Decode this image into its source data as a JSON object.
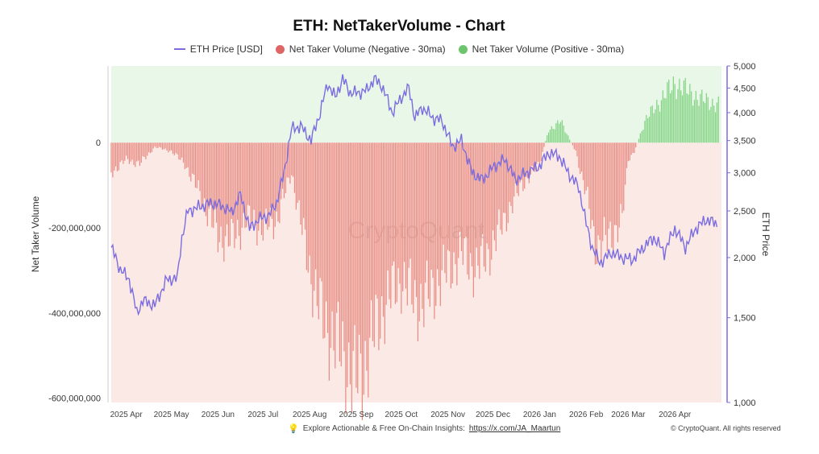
{
  "chart_data": {
    "type": "bar+line",
    "title": "ETH: NetTakerVolume - Chart",
    "legend": [
      {
        "label": "ETH Price [USD]",
        "color": "#7b6ce0",
        "kind": "line"
      },
      {
        "label": "Net Taker Volume (Negative - 30ma)",
        "color": "#e06666",
        "kind": "dot"
      },
      {
        "label": "Net Taker Volume (Positive - 30ma)",
        "color": "#6cc46c",
        "kind": "dot"
      }
    ],
    "ylabel_left": "Net Taker Volume",
    "ylabel_right": "ETH Price",
    "y_left_ticks": [
      0,
      -200000000,
      -400000000,
      -600000000
    ],
    "y_left_tick_labels": [
      "0",
      "-200,000,000",
      "-400,000,000",
      "-600,000,000"
    ],
    "y_left_range": [
      -610000000,
      180000000
    ],
    "y_right_ticks": [
      5000,
      4500,
      4000,
      3500,
      3000,
      2500,
      2000,
      1500,
      1000
    ],
    "y_right_tick_labels": [
      "5,000",
      "4,500",
      "4,000",
      "3,500",
      "3,000",
      "2,500",
      "2,000",
      "1,500",
      "1,000"
    ],
    "y_right_range": [
      1000,
      5000
    ],
    "y_right_scale": "log",
    "x_tick_labels": [
      "2025 Apr",
      "2025 May",
      "2025 Jun",
      "2025 Jul",
      "2025 Aug",
      "2025 Sep",
      "2025 Oct",
      "2025 Nov",
      "2025 Dec",
      "2026 Jan",
      "2026 Feb",
      "2026 Mar",
      "2026 Apr"
    ],
    "x_range": [
      "2025-03-22",
      "2026-05-02"
    ],
    "net_taker_volume_30ma": {
      "dates": [
        "2025-03-22",
        "2025-04-01",
        "2025-04-10",
        "2025-04-20",
        "2025-05-01",
        "2025-05-10",
        "2025-05-20",
        "2025-06-01",
        "2025-06-10",
        "2025-06-20",
        "2025-07-01",
        "2025-07-10",
        "2025-07-20",
        "2025-08-01",
        "2025-08-10",
        "2025-08-20",
        "2025-09-01",
        "2025-09-05",
        "2025-09-10",
        "2025-09-20",
        "2025-10-01",
        "2025-10-10",
        "2025-10-15",
        "2025-10-25",
        "2025-11-01",
        "2025-11-10",
        "2025-11-20",
        "2025-12-01",
        "2025-12-10",
        "2025-12-20",
        "2026-01-01",
        "2026-01-07",
        "2026-01-15",
        "2026-01-25",
        "2026-02-01",
        "2026-02-07",
        "2026-02-15",
        "2026-02-25",
        "2026-03-01",
        "2026-03-05",
        "2026-03-12",
        "2026-03-20",
        "2026-04-01",
        "2026-04-10",
        "2026-04-20",
        "2026-04-30"
      ],
      "values": [
        -70000000,
        -40000000,
        -50000000,
        -10000000,
        -20000000,
        -50000000,
        -120000000,
        -220000000,
        -230000000,
        -180000000,
        -200000000,
        -180000000,
        -70000000,
        -300000000,
        -420000000,
        -480000000,
        -560000000,
        -540000000,
        -480000000,
        -380000000,
        -320000000,
        -370000000,
        -380000000,
        -330000000,
        -300000000,
        -260000000,
        -300000000,
        -240000000,
        -170000000,
        -100000000,
        -50000000,
        30000000,
        50000000,
        -20000000,
        -120000000,
        -240000000,
        -230000000,
        -180000000,
        -40000000,
        -20000000,
        50000000,
        90000000,
        140000000,
        120000000,
        100000000,
        90000000
      ]
    },
    "eth_price": {
      "dates": [
        "2025-03-22",
        "2025-03-28",
        "2025-04-03",
        "2025-04-08",
        "2025-04-12",
        "2025-04-20",
        "2025-04-28",
        "2025-05-05",
        "2025-05-08",
        "2025-05-12",
        "2025-05-20",
        "2025-05-28",
        "2025-06-05",
        "2025-06-10",
        "2025-06-16",
        "2025-06-22",
        "2025-06-28",
        "2025-07-05",
        "2025-07-10",
        "2025-07-15",
        "2025-07-20",
        "2025-07-26",
        "2025-08-02",
        "2025-08-08",
        "2025-08-13",
        "2025-08-18",
        "2025-08-23",
        "2025-08-28",
        "2025-09-02",
        "2025-09-08",
        "2025-09-13",
        "2025-09-18",
        "2025-09-25",
        "2025-10-01",
        "2025-10-06",
        "2025-10-10",
        "2025-10-15",
        "2025-10-22",
        "2025-10-28",
        "2025-11-04",
        "2025-11-10",
        "2025-11-17",
        "2025-11-24",
        "2025-12-02",
        "2025-12-09",
        "2025-12-16",
        "2025-12-23",
        "2026-01-01",
        "2026-01-07",
        "2026-01-14",
        "2026-01-20",
        "2026-01-27",
        "2026-02-01",
        "2026-02-05",
        "2026-02-10",
        "2026-02-18",
        "2026-02-25",
        "2026-03-04",
        "2026-03-11",
        "2026-03-18",
        "2026-03-25",
        "2026-04-01",
        "2026-04-08",
        "2026-04-15",
        "2026-04-22",
        "2026-04-29"
      ],
      "values": [
        2100,
        1890,
        1800,
        1530,
        1630,
        1590,
        1800,
        1810,
        2200,
        2500,
        2550,
        2600,
        2550,
        2480,
        2700,
        2300,
        2400,
        2450,
        2600,
        3000,
        3700,
        3750,
        3500,
        4000,
        4600,
        4300,
        4700,
        4400,
        4400,
        4450,
        4700,
        4550,
        4000,
        4300,
        4500,
        3900,
        4100,
        3900,
        3850,
        3400,
        3500,
        3000,
        2900,
        3100,
        3200,
        2900,
        3000,
        3100,
        3300,
        3250,
        3000,
        2800,
        2350,
        2100,
        1950,
        2050,
        2000,
        1980,
        2100,
        2200,
        2050,
        2300,
        2100,
        2300,
        2400,
        2350
      ]
    }
  },
  "watermark": "CryptoQuant",
  "footer": {
    "insights_text": "Explore Actionable & Free On-Chain Insights:",
    "insights_link": "https://x.com/JA_Maartun",
    "copyright": "© CryptoQuant. All rights reserved"
  },
  "colors": {
    "positive_bar": "#7fd27f",
    "negative_bar": "#e88a80",
    "positive_bg": "#e9f7e9",
    "negative_bg": "#fbe9e6",
    "price_line": "#7b6ce0"
  }
}
